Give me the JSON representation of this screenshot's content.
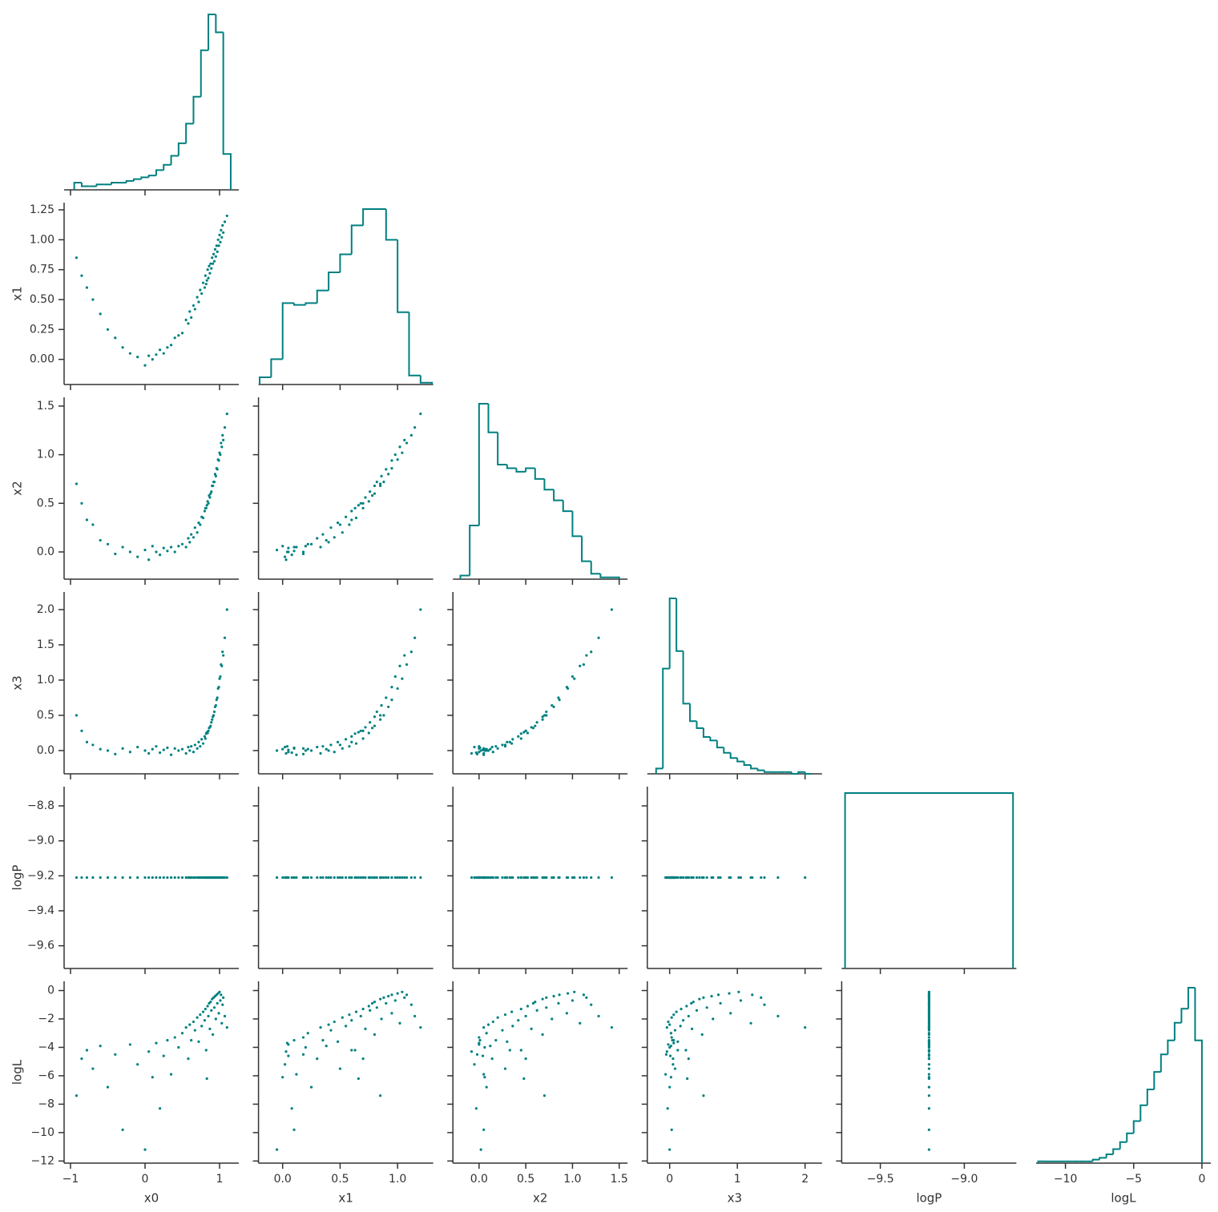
{
  "chart_data": {
    "type": "pairplot",
    "color": "#008080",
    "variables": [
      "x0",
      "x1",
      "x2",
      "x3",
      "logP",
      "logL"
    ],
    "axes": [
      {
        "lim": [
          -1.086,
          1.258
        ],
        "xticks": [
          {
            "value": -1,
            "label": "−1"
          },
          0,
          1
        ]
      },
      {
        "lim": [
          -0.21,
          1.31
        ],
        "xticks": [
          {
            "value": 0,
            "label": "0.0"
          },
          0.5,
          {
            "value": 1,
            "label": "1.0"
          }
        ],
        "yticks": [
          {
            "value": 0,
            "label": "0.00"
          },
          0.25,
          {
            "value": 0.5,
            "label": "0.50"
          },
          0.75,
          {
            "value": 1,
            "label": "1.00"
          },
          1.25
        ]
      },
      {
        "lim": [
          -0.28,
          1.59
        ],
        "xticks": [
          {
            "value": 0,
            "label": "0.0"
          },
          0.5,
          {
            "value": 1,
            "label": "1.0"
          },
          1.5
        ],
        "yticks": [
          {
            "value": 0,
            "label": "0.0"
          },
          0.5,
          {
            "value": 1,
            "label": "1.0"
          },
          1.5
        ]
      },
      {
        "lim": [
          -0.33,
          2.25
        ],
        "xticks": [
          0,
          1,
          2
        ],
        "yticks": [
          {
            "value": 0,
            "label": "0.0"
          },
          0.5,
          {
            "value": 1,
            "label": "1.0"
          },
          1.5,
          {
            "value": 2,
            "label": "2.0"
          }
        ]
      },
      {
        "lim": [
          -9.73,
          -8.69
        ],
        "xticks": [
          {
            "value": -9.5,
            "label": "−9.5"
          },
          {
            "value": -9.0,
            "label": "−9.0"
          }
        ],
        "yticks": [
          {
            "value": -8.8,
            "label": "−8.8"
          },
          {
            "value": -9.0,
            "label": "−9.0"
          },
          {
            "value": -9.2,
            "label": "−9.2"
          },
          {
            "value": -9.4,
            "label": "−9.4"
          },
          {
            "value": -9.6,
            "label": "−9.6"
          }
        ]
      },
      {
        "lim": [
          -12.15,
          0.65
        ],
        "xticks": [
          {
            "value": -10,
            "label": "−10"
          },
          {
            "value": -5,
            "label": "−5"
          },
          0
        ],
        "yticks": [
          0,
          {
            "value": -2,
            "label": "−2"
          },
          {
            "value": -4,
            "label": "−4"
          },
          {
            "value": -6,
            "label": "−6"
          },
          {
            "value": -8,
            "label": "−8"
          },
          {
            "value": -10,
            "label": "−10"
          },
          {
            "value": -12,
            "label": "−12"
          }
        ]
      }
    ],
    "histograms": [
      {
        "bins": [
          -0.95,
          -0.85,
          -0.75,
          -0.65,
          -0.55,
          -0.45,
          -0.35,
          -0.25,
          -0.15,
          -0.05,
          0.05,
          0.15,
          0.25,
          0.35,
          0.45,
          0.55,
          0.65,
          0.75,
          0.85,
          0.95,
          1.05,
          1.15
        ],
        "counts": [
          4,
          2,
          2,
          3,
          3,
          4,
          4,
          5,
          6,
          7,
          8,
          11,
          14,
          19,
          26,
          37,
          52,
          78,
          98,
          88,
          20
        ]
      },
      {
        "bins": [
          -0.2,
          -0.1,
          0,
          0.1,
          0.2,
          0.3,
          0.4,
          0.5,
          0.6,
          0.7,
          0.8,
          0.9,
          1.0,
          1.1,
          1.2,
          1.3
        ],
        "counts": [
          4,
          14,
          45,
          44,
          45,
          52,
          62,
          72,
          88,
          97,
          97,
          80,
          40,
          5,
          1
        ]
      },
      {
        "bins": [
          -0.2,
          -0.1,
          0,
          0.1,
          0.2,
          0.3,
          0.4,
          0.5,
          0.6,
          0.7,
          0.8,
          0.9,
          1.0,
          1.1,
          1.2,
          1.3,
          1.4,
          1.5
        ],
        "counts": [
          2,
          30,
          98,
          82,
          64,
          62,
          60,
          62,
          56,
          50,
          44,
          38,
          24,
          10,
          3,
          1,
          1
        ]
      },
      {
        "bins": [
          -0.2,
          -0.1,
          0,
          0.1,
          0.2,
          0.3,
          0.4,
          0.5,
          0.6,
          0.7,
          0.8,
          0.9,
          1.0,
          1.1,
          1.2,
          1.3,
          1.4,
          1.5,
          1.6,
          1.7,
          1.8,
          1.9,
          2.0,
          2.1
        ],
        "counts": [
          3,
          60,
          100,
          70,
          40,
          30,
          26,
          21,
          19,
          15,
          12,
          9,
          7,
          5,
          3,
          2,
          1,
          1,
          1,
          1,
          0,
          1,
          0
        ]
      },
      {
        "bins": [
          -9.71,
          -8.71
        ],
        "counts": [
          1
        ]
      },
      {
        "bins": [
          -12,
          -11.5,
          -11,
          -10.5,
          -10,
          -9.5,
          -9,
          -8.5,
          -8,
          -7.5,
          -7,
          -6.5,
          -6,
          -5.5,
          -5,
          -4.5,
          -4,
          -3.5,
          -3,
          -2.5,
          -2,
          -1.5,
          -1,
          -0.5,
          0
        ],
        "counts": [
          1,
          1,
          1,
          1,
          1,
          1,
          1,
          1,
          2,
          3,
          5,
          8,
          12,
          17,
          24,
          33,
          42,
          52,
          62,
          70,
          80,
          88,
          100,
          70
        ]
      }
    ],
    "samples": [
      [
        -0.92,
        -0.85,
        -0.78,
        -0.7,
        -0.6,
        -0.5,
        -0.4,
        -0.3,
        -0.2,
        -0.1,
        0.0,
        0.05,
        0.1,
        0.15,
        0.2,
        0.25,
        0.3,
        0.35,
        0.4,
        0.45,
        0.5,
        0.55,
        0.58,
        0.6,
        0.62,
        0.65,
        0.67,
        0.7,
        0.72,
        0.74,
        0.76,
        0.78,
        0.8,
        0.81,
        0.82,
        0.84,
        0.85,
        0.86,
        0.87,
        0.88,
        0.89,
        0.9,
        0.91,
        0.92,
        0.93,
        0.94,
        0.95,
        0.96,
        0.97,
        0.98,
        0.99,
        1.0,
        1.01,
        1.02,
        1.03,
        1.04,
        1.05,
        1.07,
        1.1,
        0.83
      ],
      [
        0.85,
        0.7,
        0.6,
        0.5,
        0.38,
        0.25,
        0.18,
        0.1,
        0.05,
        0.02,
        -0.05,
        0.03,
        0.0,
        0.04,
        0.08,
        0.05,
        0.1,
        0.12,
        0.18,
        0.2,
        0.22,
        0.33,
        0.3,
        0.4,
        0.35,
        0.45,
        0.42,
        0.52,
        0.48,
        0.58,
        0.55,
        0.64,
        0.6,
        0.7,
        0.63,
        0.75,
        0.68,
        0.78,
        0.72,
        0.8,
        0.76,
        0.85,
        0.8,
        0.88,
        0.82,
        0.92,
        0.86,
        0.95,
        0.9,
        1.0,
        0.95,
        1.04,
        0.98,
        1.08,
        1.02,
        1.12,
        1.06,
        1.15,
        1.2,
        0.66
      ],
      [
        0.7,
        0.5,
        0.33,
        0.28,
        0.12,
        0.08,
        -0.02,
        0.05,
        0.0,
        -0.05,
        0.02,
        -0.08,
        0.06,
        0.0,
        -0.03,
        0.04,
        0.01,
        0.05,
        0.0,
        0.06,
        0.08,
        0.05,
        0.14,
        0.1,
        0.18,
        0.15,
        0.25,
        0.2,
        0.3,
        0.28,
        0.36,
        0.35,
        0.42,
        0.45,
        0.45,
        0.52,
        0.5,
        0.58,
        0.56,
        0.6,
        0.62,
        0.68,
        0.68,
        0.72,
        0.72,
        0.8,
        0.78,
        0.86,
        0.85,
        0.95,
        0.94,
        1.02,
        1.0,
        1.12,
        1.08,
        1.2,
        1.15,
        1.28,
        1.42,
        0.48
      ],
      [
        0.5,
        0.28,
        0.12,
        0.08,
        0.02,
        0.0,
        -0.05,
        0.03,
        -0.02,
        0.05,
        0.0,
        -0.04,
        0.02,
        0.06,
        -0.03,
        0.01,
        0.04,
        -0.06,
        0.03,
        0.0,
        0.02,
        -0.04,
        0.05,
        0.0,
        0.06,
        -0.02,
        0.08,
        0.03,
        0.12,
        0.06,
        0.16,
        0.1,
        0.2,
        0.17,
        0.24,
        0.25,
        0.28,
        0.32,
        0.33,
        0.35,
        0.4,
        0.44,
        0.48,
        0.5,
        0.55,
        0.62,
        0.64,
        0.72,
        0.75,
        0.88,
        0.9,
        1.02,
        1.05,
        1.22,
        1.2,
        1.4,
        1.35,
        1.6,
        2.0,
        0.26
      ],
      [
        -9.21,
        -9.21,
        -9.21,
        -9.21,
        -9.21,
        -9.21,
        -9.21,
        -9.21,
        -9.21,
        -9.21,
        -9.21,
        -9.21,
        -9.21,
        -9.21,
        -9.21,
        -9.21,
        -9.21,
        -9.21,
        -9.21,
        -9.21,
        -9.21,
        -9.21,
        -9.21,
        -9.21,
        -9.21,
        -9.21,
        -9.21,
        -9.21,
        -9.21,
        -9.21,
        -9.21,
        -9.21,
        -9.21,
        -9.21,
        -9.21,
        -9.21,
        -9.21,
        -9.21,
        -9.21,
        -9.21,
        -9.21,
        -9.21,
        -9.21,
        -9.21,
        -9.21,
        -9.21,
        -9.21,
        -9.21,
        -9.21,
        -9.21,
        -9.21,
        -9.21,
        -9.21,
        -9.21,
        -9.21,
        -9.21,
        -9.21,
        -9.21,
        -9.21,
        -9.21
      ],
      [
        -7.4,
        -4.8,
        -4.2,
        -5.5,
        -3.9,
        -6.8,
        -4.5,
        -9.8,
        -3.8,
        -5.2,
        -11.2,
        -4.3,
        -6.1,
        -3.7,
        -8.3,
        -4.6,
        -3.5,
        -5.9,
        -3.3,
        -4.0,
        -3.0,
        -2.6,
        -4.8,
        -2.4,
        -3.5,
        -2.2,
        -2.8,
        -1.9,
        -3.6,
        -1.7,
        -2.5,
        -1.5,
        -2.1,
        -1.3,
        -4.2,
        -1.1,
        -1.8,
        -0.9,
        -2.7,
        -0.8,
        -1.4,
        -0.6,
        -3.1,
        -0.5,
        -1.2,
        -0.4,
        -2.0,
        -0.3,
        -0.9,
        -0.2,
        -1.6,
        -0.1,
        -0.7,
        -0.3,
        -2.3,
        -1.0,
        -0.5,
        -1.8,
        -2.6,
        -6.2
      ]
    ]
  }
}
